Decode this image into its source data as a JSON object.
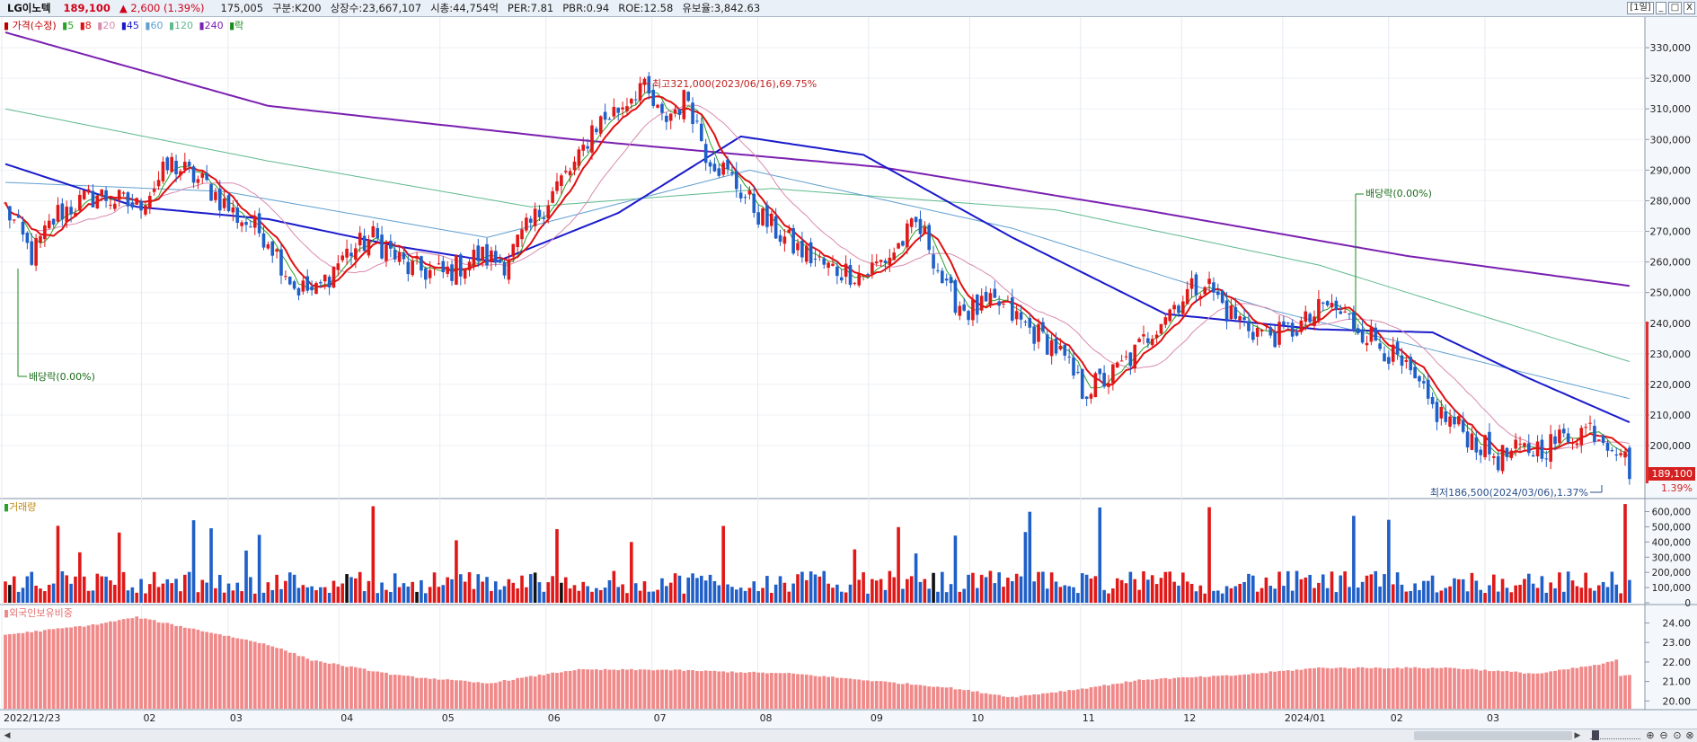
{
  "header": {
    "name": "LG이노텍",
    "price": "189,100",
    "change": "▲ 2,600 (1.39%)",
    "items": [
      "175,005",
      "구분:K200",
      "상장수:23,667,107",
      "시총:44,754억",
      "PER:7.81",
      "PBR:0.94",
      "ROE:12.58",
      "유보율:3,842.63"
    ],
    "period": "[1일]",
    "window_buttons": [
      "_",
      "□",
      "X"
    ]
  },
  "legend": {
    "main": [
      {
        "text": "가격(수정)",
        "color": "#c00000"
      },
      {
        "text": "5",
        "color": "#2aa02a"
      },
      {
        "text": "8",
        "color": "#e01010"
      },
      {
        "text": "20",
        "color": "#d98ab0"
      },
      {
        "text": "45",
        "color": "#1a1acc"
      },
      {
        "text": "60",
        "color": "#60a0d0"
      },
      {
        "text": "120",
        "color": "#5fba8e"
      },
      {
        "text": "240",
        "color": "#7a20b0"
      },
      {
        "text": "락",
        "color": "#1a8a1a"
      }
    ],
    "volume": "거래량",
    "foreign": "외국인보유비중"
  },
  "annotations": {
    "high": "최고321,000(2023/06/16),69.75%",
    "low": "최저186,500(2024/03/06),1.37%",
    "dividend_1": "배당락(0.00%)",
    "dividend_2": "배당락(0.00%)",
    "current_price_tag": "189,100",
    "current_pct_tag": "1.39%"
  },
  "colors": {
    "up": "#e01818",
    "down": "#1f5fc8",
    "ma5": "#2aa02a",
    "ma8": "#e01010",
    "ma20": "#d98ab0",
    "ma45": "#1a1acc",
    "ma60": "#60a0d0",
    "ma120": "#5fba8e",
    "ma240": "#7a20b0",
    "foreign": "#f08a8a"
  },
  "chart_data": [
    {
      "type": "candlestick",
      "x_labels": [
        "2022/12/23",
        "02",
        "03",
        "04",
        "05",
        "06",
        "07",
        "08",
        "09",
        "10",
        "11",
        "12",
        "2024/01",
        "02",
        "03"
      ],
      "y_ticks": [
        "330,000",
        "320,000",
        "310,000",
        "300,000",
        "290,000",
        "280,000",
        "270,000",
        "260,000",
        "250,000",
        "240,000",
        "230,000",
        "220,000",
        "210,000",
        "200,000"
      ],
      "ylim": [
        183000,
        340000
      ],
      "close_path": [
        [
          0,
          278000
        ],
        [
          6,
          262000
        ],
        [
          12,
          276000
        ],
        [
          21,
          282000
        ],
        [
          30,
          278000
        ],
        [
          38,
          292000
        ],
        [
          46,
          285000
        ],
        [
          52,
          276000
        ],
        [
          60,
          268000
        ],
        [
          66,
          252000
        ],
        [
          71,
          250000
        ],
        [
          77,
          262000
        ],
        [
          84,
          268000
        ],
        [
          92,
          258000
        ],
        [
          100,
          256000
        ],
        [
          108,
          262000
        ],
        [
          114,
          260000
        ],
        [
          120,
          272000
        ],
        [
          126,
          285000
        ],
        [
          131,
          293000
        ],
        [
          134,
          304000
        ],
        [
          140,
          310000
        ],
        [
          145,
          318000
        ],
        [
          150,
          306000
        ],
        [
          156,
          314000
        ],
        [
          160,
          296000
        ],
        [
          166,
          287000
        ],
        [
          173,
          274000
        ],
        [
          180,
          265000
        ],
        [
          188,
          258000
        ],
        [
          196,
          256000
        ],
        [
          202,
          262000
        ],
        [
          208,
          272000
        ],
        [
          211,
          266000
        ],
        [
          215,
          250000
        ],
        [
          220,
          244000
        ],
        [
          227,
          246000
        ],
        [
          234,
          238000
        ],
        [
          240,
          232000
        ],
        [
          246,
          218000
        ],
        [
          252,
          222000
        ],
        [
          258,
          230000
        ],
        [
          264,
          242000
        ],
        [
          270,
          250000
        ],
        [
          274,
          254000
        ],
        [
          279,
          244000
        ],
        [
          285,
          238000
        ],
        [
          291,
          236000
        ],
        [
          297,
          240000
        ],
        [
          302,
          246000
        ],
        [
          308,
          240000
        ],
        [
          315,
          232000
        ],
        [
          321,
          222000
        ],
        [
          326,
          212000
        ],
        [
          332,
          206000
        ],
        [
          337,
          200000
        ],
        [
          341,
          196000
        ],
        [
          346,
          198000
        ],
        [
          352,
          200000
        ],
        [
          358,
          204000
        ],
        [
          362,
          206000
        ],
        [
          366,
          202000
        ],
        [
          369,
          199500
        ],
        [
          371,
          189100
        ]
      ],
      "ma": [
        {
          "name": "240",
          "points": [
            [
              0,
              335000
            ],
            [
              60,
              311000
            ],
            [
              130,
              300000
            ],
            [
              200,
              291000
            ],
            [
              260,
              277000
            ],
            [
              320,
              262000
            ],
            [
              372,
              252000
            ]
          ]
        },
        {
          "name": "120",
          "points": [
            [
              0,
              310000
            ],
            [
              60,
              293000
            ],
            [
              120,
              278000
            ],
            [
              175,
              284000
            ],
            [
              240,
              277000
            ],
            [
              300,
              259000
            ],
            [
              372,
              227000
            ]
          ]
        },
        {
          "name": "60",
          "points": [
            [
              0,
              286000
            ],
            [
              50,
              283000
            ],
            [
              110,
              268000
            ],
            [
              170,
              290000
            ],
            [
              230,
              271000
            ],
            [
              290,
              244000
            ],
            [
              372,
              215000
            ]
          ]
        },
        {
          "name": "45",
          "points": [
            [
              0,
              292000
            ],
            [
              30,
              278000
            ],
            [
              60,
              274000
            ],
            [
              90,
              265000
            ],
            [
              112,
              260000
            ],
            [
              140,
              276000
            ],
            [
              168,
              301000
            ],
            [
              196,
              295000
            ],
            [
              230,
              268000
            ],
            [
              265,
              243000
            ],
            [
              300,
              238000
            ],
            [
              326,
              237000
            ],
            [
              348,
              222000
            ],
            [
              372,
              207000
            ]
          ]
        }
      ],
      "high": 321000,
      "low": 186500,
      "last_close": 189100
    },
    {
      "type": "bar",
      "name": "거래량",
      "y_ticks": [
        "600,000",
        "500,000",
        "400,000",
        "300,000",
        "200,000",
        "100,000",
        "0"
      ],
      "ylim": [
        0,
        680000
      ],
      "last_value": 650000
    },
    {
      "type": "bar",
      "name": "외국인보유비중",
      "y_ticks": [
        "24.00",
        "23.00",
        "22.00",
        "21.00",
        "20.00"
      ],
      "ylim": [
        19.6,
        24.9
      ],
      "path": [
        [
          0,
          23.4
        ],
        [
          20,
          23.9
        ],
        [
          30,
          24.3
        ],
        [
          45,
          23.6
        ],
        [
          60,
          22.9
        ],
        [
          70,
          22.1
        ],
        [
          90,
          21.3
        ],
        [
          110,
          20.9
        ],
        [
          130,
          21.6
        ],
        [
          150,
          21.6
        ],
        [
          180,
          21.4
        ],
        [
          200,
          21.0
        ],
        [
          215,
          20.7
        ],
        [
          230,
          20.2
        ],
        [
          245,
          20.6
        ],
        [
          260,
          21.1
        ],
        [
          280,
          21.3
        ],
        [
          300,
          21.7
        ],
        [
          330,
          21.7
        ],
        [
          350,
          21.4
        ],
        [
          365,
          21.9
        ],
        [
          368,
          22.1
        ],
        [
          369,
          21.3
        ],
        [
          371,
          21.3
        ]
      ]
    }
  ]
}
